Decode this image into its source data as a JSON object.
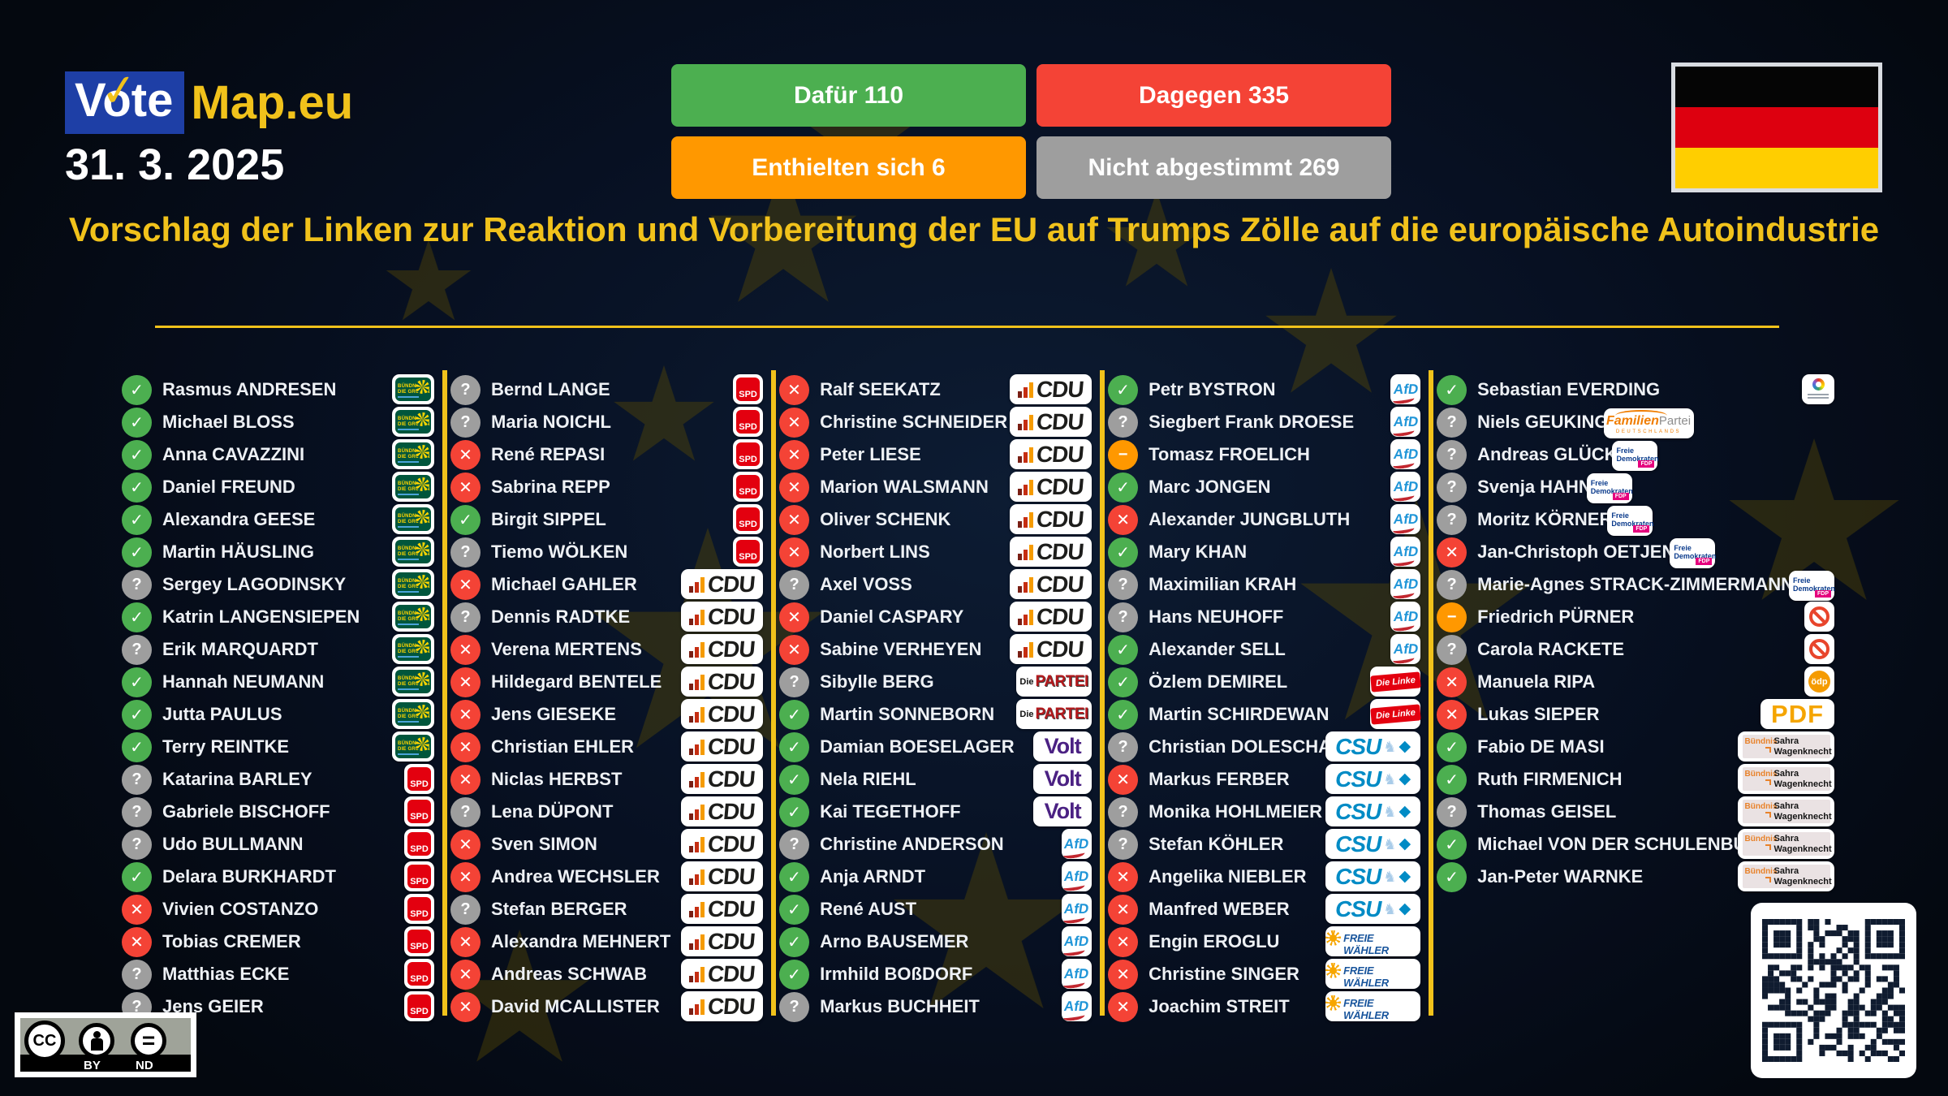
{
  "header": {
    "logo": {
      "vote": "Vote",
      "check": "✓",
      "map": "Map.eu"
    },
    "date": "31. 3. 2025",
    "results": [
      {
        "label": "Dafür 110",
        "color": "#4caf50"
      },
      {
        "label": "Dagegen 335",
        "color": "#f44336"
      },
      {
        "label": "Enthielten sich 6",
        "color": "#ff9800"
      },
      {
        "label": "Nicht abgestimmt 269",
        "color": "#9e9e9e"
      }
    ],
    "flag": "germany"
  },
  "title": "Vorschlag der Linken zur Reaktion und Vorbereitung der EU auf Trumps Zölle auf die europäische Autoindustrie",
  "theme": {
    "gold": "#f1c21b",
    "for": "#4caf50",
    "against": "#f44336",
    "unknown": "#9e9e9e",
    "abstain": "#ff9800"
  },
  "vote_styles": {
    "for": {
      "glyph": "✓",
      "color": "#4caf50"
    },
    "against": {
      "glyph": "✕",
      "color": "#f44336"
    },
    "unknown": {
      "glyph": "?",
      "color": "#9e9e9e"
    },
    "abstain": {
      "glyph": "−",
      "color": "#ff9800"
    }
  },
  "parties": {
    "gruene": {
      "line1": "BÜNDNIS 90",
      "line2": "DIE GRÜNEN"
    },
    "spd": {
      "label": "SPD"
    },
    "cdu": {
      "label": "CDU"
    },
    "partei": {
      "prefix": "Die",
      "label": "PARTEI"
    },
    "volt": {
      "label": "Volt"
    },
    "afd": {
      "label": "AfD"
    },
    "linke": {
      "label": "Die Linke"
    },
    "csu": {
      "label": "CSU"
    },
    "fw": {
      "label": "FREIE WÄHLER"
    },
    "tier": {},
    "fam": {
      "part1": "Familien",
      "part2": "Partei",
      "line2": "DEUTSCHLANDS"
    },
    "fdp": {
      "line1": "Freie",
      "line2": "Demokraten",
      "tag": "FDP"
    },
    "none": {},
    "oedp": {
      "label": "ödp"
    },
    "pdf": {
      "label": "PDF"
    },
    "bsw": {
      "part1": "Bündnis",
      "part2": "Sahra",
      "part3": "Wagenknecht"
    }
  },
  "columns": [
    [
      {
        "n": "Rasmus ANDRESEN",
        "v": "for",
        "p": "gruene"
      },
      {
        "n": "Michael BLOSS",
        "v": "for",
        "p": "gruene"
      },
      {
        "n": "Anna CAVAZZINI",
        "v": "for",
        "p": "gruene"
      },
      {
        "n": "Daniel FREUND",
        "v": "for",
        "p": "gruene"
      },
      {
        "n": "Alexandra GEESE",
        "v": "for",
        "p": "gruene"
      },
      {
        "n": "Martin HÄUSLING",
        "v": "for",
        "p": "gruene"
      },
      {
        "n": "Sergey LAGODINSKY",
        "v": "unknown",
        "p": "gruene"
      },
      {
        "n": "Katrin LANGENSIEPEN",
        "v": "for",
        "p": "gruene"
      },
      {
        "n": "Erik MARQUARDT",
        "v": "unknown",
        "p": "gruene"
      },
      {
        "n": "Hannah NEUMANN",
        "v": "for",
        "p": "gruene"
      },
      {
        "n": "Jutta PAULUS",
        "v": "for",
        "p": "gruene"
      },
      {
        "n": "Terry REINTKE",
        "v": "for",
        "p": "gruene"
      },
      {
        "n": "Katarina BARLEY",
        "v": "unknown",
        "p": "spd"
      },
      {
        "n": "Gabriele BISCHOFF",
        "v": "unknown",
        "p": "spd"
      },
      {
        "n": "Udo BULLMANN",
        "v": "unknown",
        "p": "spd"
      },
      {
        "n": "Delara BURKHARDT",
        "v": "for",
        "p": "spd"
      },
      {
        "n": "Vivien COSTANZO",
        "v": "against",
        "p": "spd"
      },
      {
        "n": "Tobias CREMER",
        "v": "against",
        "p": "spd"
      },
      {
        "n": "Matthias ECKE",
        "v": "unknown",
        "p": "spd"
      },
      {
        "n": "Jens GEIER",
        "v": "unknown",
        "p": "spd"
      }
    ],
    [
      {
        "n": "Bernd LANGE",
        "v": "unknown",
        "p": "spd"
      },
      {
        "n": "Maria NOICHL",
        "v": "unknown",
        "p": "spd"
      },
      {
        "n": "René REPASI",
        "v": "against",
        "p": "spd"
      },
      {
        "n": "Sabrina REPP",
        "v": "against",
        "p": "spd"
      },
      {
        "n": "Birgit SIPPEL",
        "v": "for",
        "p": "spd"
      },
      {
        "n": "Tiemo WÖLKEN",
        "v": "unknown",
        "p": "spd"
      },
      {
        "n": "Michael GAHLER",
        "v": "against",
        "p": "cdu"
      },
      {
        "n": "Dennis RADTKE",
        "v": "unknown",
        "p": "cdu"
      },
      {
        "n": "Verena MERTENS",
        "v": "against",
        "p": "cdu"
      },
      {
        "n": "Hildegard BENTELE",
        "v": "against",
        "p": "cdu"
      },
      {
        "n": "Jens GIESEKE",
        "v": "against",
        "p": "cdu"
      },
      {
        "n": "Christian EHLER",
        "v": "against",
        "p": "cdu"
      },
      {
        "n": "Niclas HERBST",
        "v": "against",
        "p": "cdu"
      },
      {
        "n": "Lena DÜPONT",
        "v": "unknown",
        "p": "cdu"
      },
      {
        "n": "Sven SIMON",
        "v": "against",
        "p": "cdu"
      },
      {
        "n": "Andrea WECHSLER",
        "v": "against",
        "p": "cdu"
      },
      {
        "n": "Stefan BERGER",
        "v": "unknown",
        "p": "cdu"
      },
      {
        "n": "Alexandra MEHNERT",
        "v": "against",
        "p": "cdu"
      },
      {
        "n": "Andreas SCHWAB",
        "v": "against",
        "p": "cdu"
      },
      {
        "n": "David MCALLISTER",
        "v": "against",
        "p": "cdu"
      }
    ],
    [
      {
        "n": "Ralf SEEKATZ",
        "v": "against",
        "p": "cdu"
      },
      {
        "n": "Christine SCHNEIDER",
        "v": "against",
        "p": "cdu"
      },
      {
        "n": "Peter LIESE",
        "v": "against",
        "p": "cdu"
      },
      {
        "n": "Marion WALSMANN",
        "v": "against",
        "p": "cdu"
      },
      {
        "n": "Oliver SCHENK",
        "v": "against",
        "p": "cdu"
      },
      {
        "n": "Norbert LINS",
        "v": "against",
        "p": "cdu"
      },
      {
        "n": "Axel VOSS",
        "v": "unknown",
        "p": "cdu"
      },
      {
        "n": "Daniel CASPARY",
        "v": "against",
        "p": "cdu"
      },
      {
        "n": "Sabine VERHEYEN",
        "v": "against",
        "p": "cdu"
      },
      {
        "n": "Sibylle BERG",
        "v": "unknown",
        "p": "partei"
      },
      {
        "n": "Martin SONNEBORN",
        "v": "for",
        "p": "partei"
      },
      {
        "n": "Damian BOESELAGER",
        "v": "for",
        "p": "volt"
      },
      {
        "n": "Nela RIEHL",
        "v": "for",
        "p": "volt"
      },
      {
        "n": "Kai TEGETHOFF",
        "v": "for",
        "p": "volt"
      },
      {
        "n": "Christine ANDERSON",
        "v": "unknown",
        "p": "afd"
      },
      {
        "n": "Anja ARNDT",
        "v": "for",
        "p": "afd"
      },
      {
        "n": "René AUST",
        "v": "for",
        "p": "afd"
      },
      {
        "n": "Arno BAUSEMER",
        "v": "for",
        "p": "afd"
      },
      {
        "n": "Irmhild BOßDORF",
        "v": "for",
        "p": "afd"
      },
      {
        "n": "Markus BUCHHEIT",
        "v": "unknown",
        "p": "afd"
      }
    ],
    [
      {
        "n": "Petr BYSTRON",
        "v": "for",
        "p": "afd"
      },
      {
        "n": "Siegbert Frank DROESE",
        "v": "unknown",
        "p": "afd"
      },
      {
        "n": "Tomasz FROELICH",
        "v": "abstain",
        "p": "afd"
      },
      {
        "n": "Marc JONGEN",
        "v": "for",
        "p": "afd"
      },
      {
        "n": "Alexander JUNGBLUTH",
        "v": "against",
        "p": "afd"
      },
      {
        "n": "Mary KHAN",
        "v": "for",
        "p": "afd"
      },
      {
        "n": "Maximilian KRAH",
        "v": "unknown",
        "p": "afd"
      },
      {
        "n": "Hans NEUHOFF",
        "v": "unknown",
        "p": "afd"
      },
      {
        "n": "Alexander SELL",
        "v": "for",
        "p": "afd"
      },
      {
        "n": "Özlem DEMIREL",
        "v": "for",
        "p": "linke"
      },
      {
        "n": "Martin SCHIRDEWAN",
        "v": "for",
        "p": "linke"
      },
      {
        "n": "Christian DOLESCHAL",
        "v": "unknown",
        "p": "csu"
      },
      {
        "n": "Markus FERBER",
        "v": "against",
        "p": "csu"
      },
      {
        "n": "Monika HOHLMEIER",
        "v": "unknown",
        "p": "csu"
      },
      {
        "n": "Stefan KÖHLER",
        "v": "unknown",
        "p": "csu"
      },
      {
        "n": "Angelika NIEBLER",
        "v": "against",
        "p": "csu"
      },
      {
        "n": "Manfred WEBER",
        "v": "against",
        "p": "csu"
      },
      {
        "n": "Engin EROGLU",
        "v": "against",
        "p": "fw"
      },
      {
        "n": "Christine SINGER",
        "v": "against",
        "p": "fw"
      },
      {
        "n": "Joachim STREIT",
        "v": "against",
        "p": "fw"
      }
    ],
    [
      {
        "n": "Sebastian EVERDING",
        "v": "for",
        "p": "tier"
      },
      {
        "n": "Niels GEUKING",
        "v": "unknown",
        "p": "fam"
      },
      {
        "n": "Andreas GLÜCK",
        "v": "unknown",
        "p": "fdp"
      },
      {
        "n": "Svenja HAHN",
        "v": "unknown",
        "p": "fdp"
      },
      {
        "n": "Moritz KÖRNER",
        "v": "unknown",
        "p": "fdp"
      },
      {
        "n": "Jan-Christoph OETJEN",
        "v": "against",
        "p": "fdp"
      },
      {
        "n": "Marie-Agnes STRACK-ZIMMERMANN",
        "v": "unknown",
        "p": "fdp"
      },
      {
        "n": "Friedrich PÜRNER",
        "v": "abstain",
        "p": "none"
      },
      {
        "n": "Carola RACKETE",
        "v": "unknown",
        "p": "none"
      },
      {
        "n": "Manuela RIPA",
        "v": "against",
        "p": "oedp"
      },
      {
        "n": "Lukas SIEPER",
        "v": "against",
        "p": "pdf"
      },
      {
        "n": "Fabio DE MASI",
        "v": "for",
        "p": "bsw"
      },
      {
        "n": "Ruth FIRMENICH",
        "v": "for",
        "p": "bsw"
      },
      {
        "n": "Thomas GEISEL",
        "v": "unknown",
        "p": "bsw"
      },
      {
        "n": "Michael VON DER SCHULENBURG",
        "v": "for",
        "p": "bsw"
      },
      {
        "n": "Jan-Peter WARNKE",
        "v": "for",
        "p": "bsw"
      }
    ]
  ],
  "license": {
    "cc": "CC",
    "by": "BY",
    "nd": "ND",
    "eq": "="
  }
}
